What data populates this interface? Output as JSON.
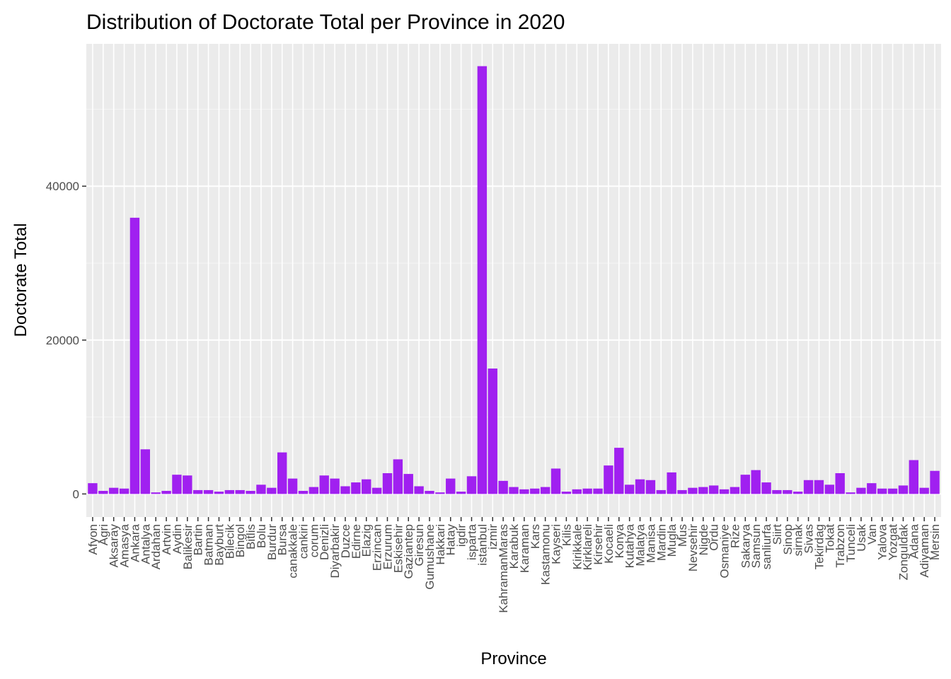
{
  "colors": {
    "bar": "#A020F0",
    "panel": "#EBEBEB",
    "grid_major": "#FFFFFF",
    "grid_minor": "#F5F5F5",
    "tick_text": "#4D4D4D",
    "tick_mark": "#333333"
  },
  "chart_data": {
    "type": "bar",
    "title": "Distribution of Doctorate Total per Province in 2020",
    "xlabel": "Province",
    "ylabel": "Doctorate Total",
    "ylim": [
      -3000,
      58500
    ],
    "y_ticks": [
      0,
      20000,
      40000
    ],
    "y_tick_labels": [
      "0",
      "20000",
      "40000"
    ],
    "grid": true,
    "legend": "none",
    "categories": [
      "Afyon",
      "Agri",
      "Aksaray",
      "Amasya",
      "Ankara",
      "Antalya",
      "Ardahan",
      "Artvin",
      "Aydin",
      "Balikesir",
      "Bartin",
      "Batman",
      "Bayburt",
      "Bilecik",
      "Bingol",
      "Bitlis",
      "Bolu",
      "Burdur",
      "Bursa",
      "canakkale",
      "cankiri",
      "corum",
      "Denizli",
      "Diyarbakir",
      "Duzce",
      "Edirne",
      "Elazig",
      "Erzincan",
      "Erzurum",
      "Eskisehir",
      "Gaziantep",
      "Giresun",
      "Gumushane",
      "Hakkari",
      "Hatay",
      "igdir",
      "isparta",
      "istanbul",
      "izmir",
      "KahramanMaras",
      "Karabuk",
      "Karaman",
      "Kars",
      "Kastamonu",
      "Kayseri",
      "Kilis",
      "Kirikkale",
      "Kirklareli",
      "Kirsehir",
      "Kocaeli",
      "Konya",
      "Kutahya",
      "Malatya",
      "Manisa",
      "Mardin",
      "Mugla",
      "Mus",
      "Nevsehir",
      "Nigde",
      "Ordu",
      "Osmaniye",
      "Rize",
      "Sakarya",
      "Samsun",
      "sanliurfa",
      "Siirt",
      "Sinop",
      "sirnak",
      "Sivas",
      "Tekirdag",
      "Tokat",
      "Trabzon",
      "Tunceli",
      "Usak",
      "Van",
      "Yalova",
      "Yozgat",
      "Zonguldak",
      "Adana",
      "Adiyaman",
      "Mersin"
    ],
    "values": [
      1400,
      400,
      800,
      700,
      35900,
      5800,
      200,
      400,
      2500,
      2400,
      500,
      500,
      300,
      500,
      500,
      400,
      1200,
      800,
      5400,
      2000,
      400,
      900,
      2400,
      2000,
      1000,
      1500,
      1900,
      800,
      2700,
      4500,
      2600,
      1000,
      400,
      200,
      2000,
      300,
      2300,
      55600,
      16300,
      1700,
      900,
      600,
      700,
      900,
      3300,
      300,
      600,
      700,
      700,
      3700,
      6000,
      1200,
      1900,
      1800,
      500,
      2800,
      500,
      800,
      900,
      1100,
      600,
      900,
      2500,
      3100,
      1500,
      500,
      500,
      300,
      1800,
      1800,
      1200,
      2700,
      200,
      800,
      1400,
      700,
      700,
      1100,
      4400,
      800,
      3000
    ]
  }
}
